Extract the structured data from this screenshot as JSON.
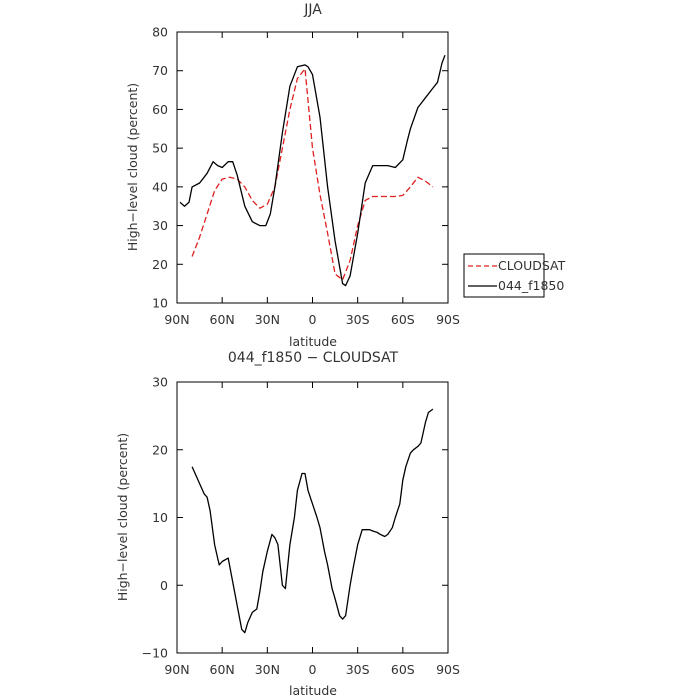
{
  "chart_data": [
    {
      "type": "line",
      "title": "JJA",
      "xlabel": "latitude",
      "ylabel": "High−level cloud (percent)",
      "xlim": [
        90,
        -90
      ],
      "ylim": [
        10,
        80
      ],
      "xticks": [
        90,
        60,
        30,
        0,
        -30,
        -60,
        -90
      ],
      "xtick_labels": [
        "90N",
        "60N",
        "30N",
        "0",
        "30S",
        "60S",
        "90S"
      ],
      "yticks": [
        10,
        20,
        30,
        40,
        50,
        60,
        70,
        80
      ],
      "ytick_labels": [
        "10",
        "20",
        "30",
        "40",
        "50",
        "60",
        "70",
        "80"
      ],
      "legend_position": "right",
      "series": [
        {
          "name": "CLOUDSAT",
          "color": "#e02020",
          "style": "dashed",
          "x": [
            80,
            75,
            70,
            65,
            60,
            55,
            50,
            45,
            40,
            35,
            30,
            25,
            20,
            15,
            10,
            5,
            0,
            -5,
            -10,
            -15,
            -20,
            -25,
            -30,
            -35,
            -40,
            -45,
            -50,
            -55,
            -60,
            -65,
            -70,
            -75,
            -80
          ],
          "y": [
            22,
            27,
            33,
            39,
            42,
            42.5,
            42,
            40,
            36.5,
            34.5,
            35.5,
            40,
            50,
            60,
            68,
            70.5,
            50,
            38,
            28,
            17.5,
            16,
            21,
            30,
            36.5,
            37.5,
            37.5,
            37.5,
            37.5,
            37.8,
            40,
            42.5,
            41.5,
            40
          ]
        },
        {
          "name": "044_f1850",
          "color": "#000000",
          "style": "solid",
          "x": [
            88,
            85,
            82,
            80,
            75,
            70,
            66,
            63,
            60,
            56,
            53,
            50,
            45,
            40,
            35,
            31,
            28,
            25,
            20,
            15,
            10,
            5,
            3,
            0,
            -5,
            -10,
            -15,
            -20,
            -22,
            -25,
            -30,
            -35,
            -40,
            -45,
            -50,
            -55,
            -60,
            -63,
            -65,
            -70,
            -75,
            -80,
            -83,
            -86,
            -88
          ],
          "y": [
            36,
            35,
            36,
            40,
            41,
            43.5,
            46.5,
            45.5,
            45,
            46.5,
            46.5,
            43,
            35,
            31,
            30,
            30,
            33,
            40,
            54,
            66,
            71,
            71.5,
            71,
            69,
            58,
            40,
            26,
            15,
            14.5,
            17,
            28,
            41,
            45.5,
            45.5,
            45.5,
            45,
            47,
            52,
            55,
            60.5,
            63,
            65.5,
            67,
            72,
            74
          ]
        }
      ]
    },
    {
      "type": "line",
      "title": "044_f1850 − CLOUDSAT",
      "xlabel": "latitude",
      "ylabel": "High−level cloud (percent)",
      "xlim": [
        90,
        -90
      ],
      "ylim": [
        -10,
        30
      ],
      "xticks": [
        90,
        60,
        30,
        0,
        -30,
        -60,
        -90
      ],
      "xtick_labels": [
        "90N",
        "60N",
        "30N",
        "0",
        "30S",
        "60S",
        "90S"
      ],
      "yticks": [
        -10,
        0,
        10,
        20,
        30
      ],
      "ytick_labels": [
        "−10",
        "0",
        "10",
        "20",
        "30"
      ],
      "series": [
        {
          "color": "#000000",
          "style": "solid",
          "x": [
            80,
            77,
            75,
            72,
            70,
            68,
            65,
            62,
            60,
            56,
            53,
            50,
            47,
            45,
            43,
            40,
            37,
            35,
            33,
            30,
            27,
            25,
            23,
            20,
            18,
            15,
            12,
            10,
            7,
            5,
            3,
            0,
            -3,
            -5,
            -8,
            -10,
            -13,
            -15,
            -18,
            -20,
            -22,
            -25,
            -27,
            -30,
            -33,
            -35,
            -38,
            -40,
            -43,
            -45,
            -48,
            -50,
            -53,
            -55,
            -58,
            -60,
            -62,
            -65,
            -67,
            -70,
            -72,
            -75,
            -77,
            -80
          ],
          "y": [
            17.5,
            16,
            15,
            13.5,
            13,
            11,
            6,
            3,
            3.5,
            4,
            0.5,
            -3,
            -6.5,
            -7,
            -5.5,
            -4,
            -3.5,
            -1,
            2,
            5,
            7.5,
            7,
            6,
            0,
            -0.5,
            6,
            10,
            14,
            16.5,
            16.5,
            14,
            12,
            10,
            8.5,
            5,
            3,
            -0.5,
            -2,
            -4.5,
            -5,
            -4.5,
            0,
            2.5,
            6,
            8.2,
            8.2,
            8.2,
            8,
            7.8,
            7.5,
            7.2,
            7.5,
            8.5,
            10,
            12,
            15.5,
            17.5,
            19.5,
            20,
            20.5,
            21,
            24,
            25.5,
            26
          ]
        }
      ]
    }
  ]
}
